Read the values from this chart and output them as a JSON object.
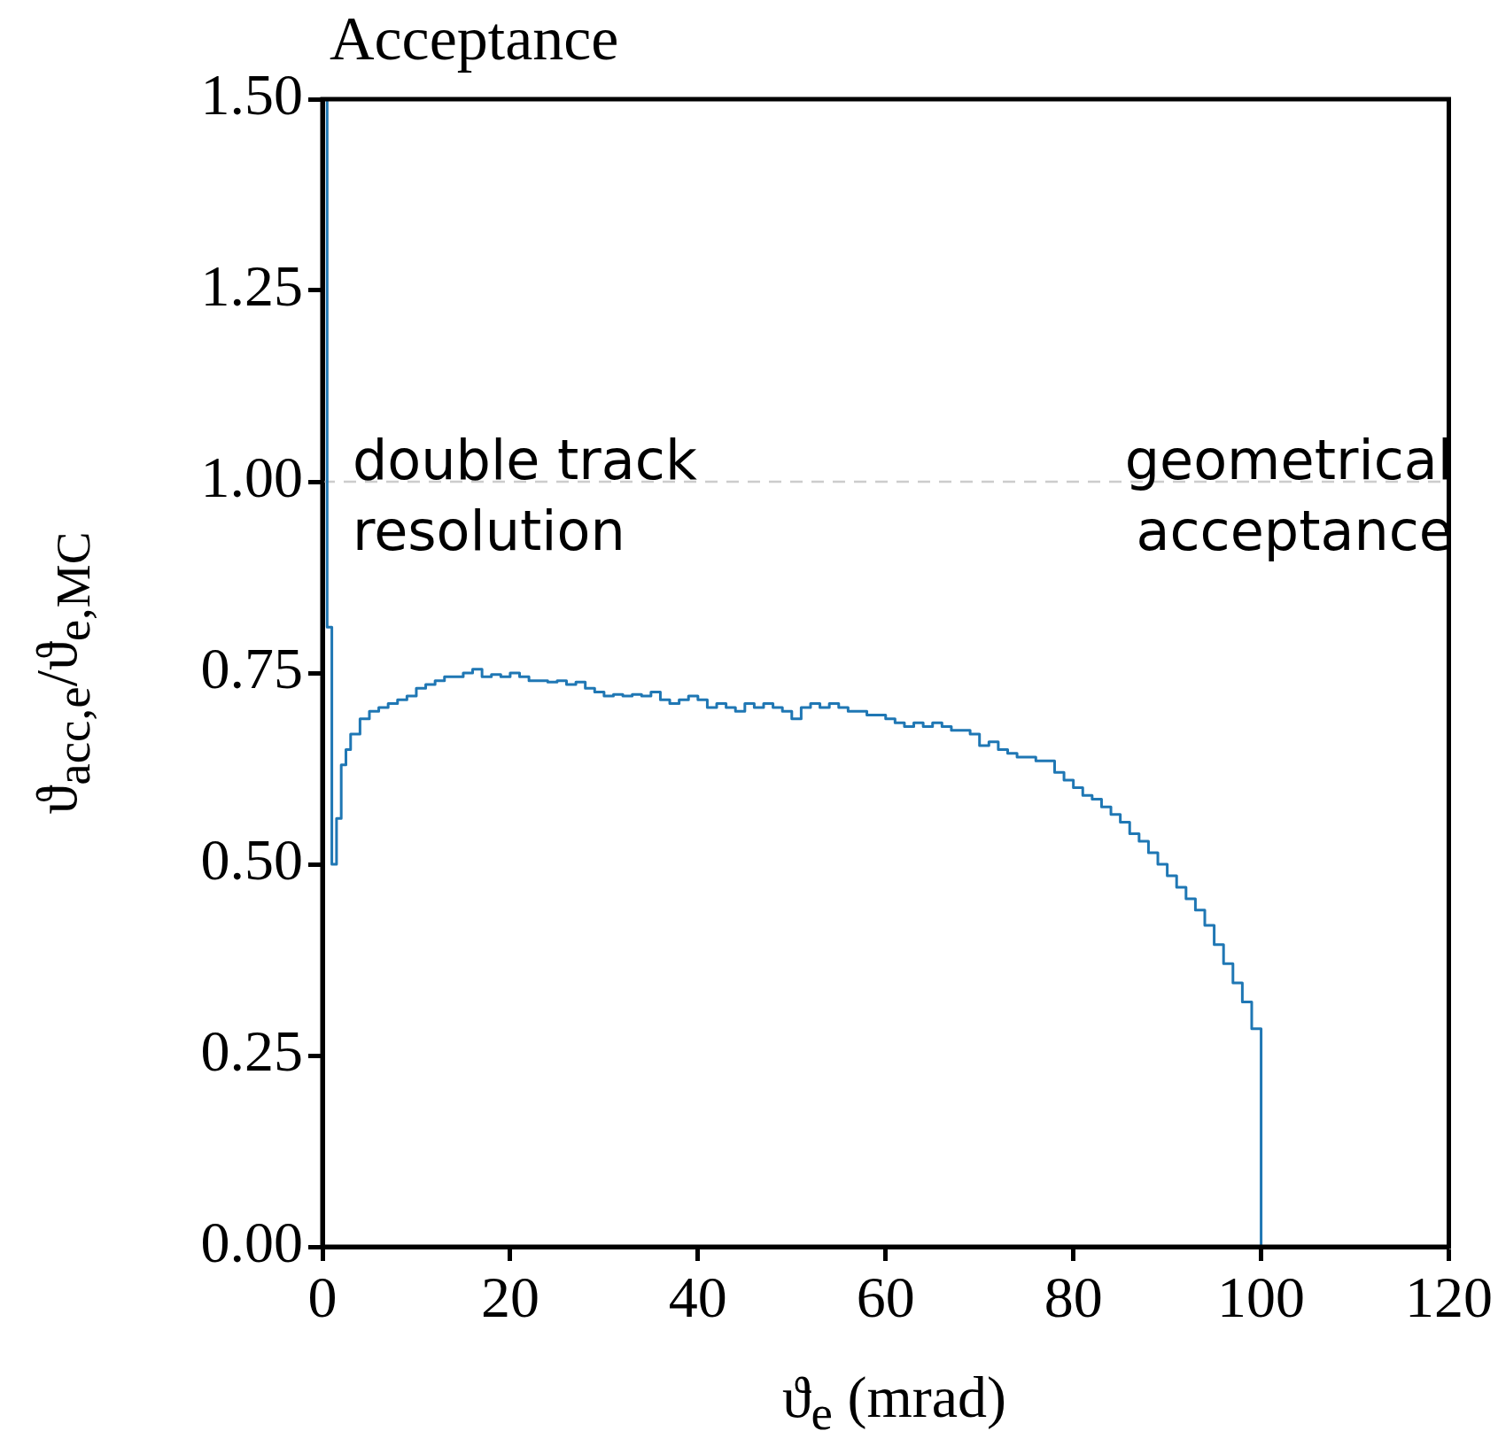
{
  "chart_data": {
    "type": "histogram",
    "title": "Acceptance",
    "xlabel": "ϑ$_{e}$ (mrad)",
    "ylabel": "ϑ$_{acc,e}$/ϑ$_{e,MC}$",
    "bins": [
      0,
      0.5,
      1,
      1.5,
      2,
      2.5,
      3,
      4,
      5,
      6,
      7,
      8,
      9,
      10,
      11,
      12,
      13,
      14,
      15,
      16,
      17,
      18,
      19,
      20,
      21,
      22,
      23,
      24,
      25,
      26,
      27,
      28,
      29,
      30,
      31,
      32,
      33,
      34,
      35,
      36,
      37,
      38,
      39,
      40,
      41,
      42,
      43,
      44,
      45,
      46,
      47,
      48,
      49,
      50,
      51,
      52,
      53,
      54,
      55,
      56,
      57,
      58,
      59,
      60,
      61,
      62,
      63,
      64,
      65,
      66,
      67,
      68,
      69,
      70,
      71,
      72,
      73,
      74,
      75,
      76,
      77,
      78,
      79,
      80,
      81,
      82,
      83,
      84,
      85,
      86,
      87,
      88,
      89,
      90,
      91,
      92,
      93,
      94,
      95,
      96,
      97,
      98,
      99,
      100
    ],
    "values": [
      1.5,
      0.81,
      0.5,
      0.56,
      0.63,
      0.65,
      0.67,
      0.69,
      0.7,
      0.705,
      0.71,
      0.715,
      0.72,
      0.73,
      0.735,
      0.74,
      0.745,
      0.745,
      0.75,
      0.755,
      0.745,
      0.748,
      0.745,
      0.75,
      0.745,
      0.74,
      0.74,
      0.738,
      0.74,
      0.735,
      0.738,
      0.73,
      0.725,
      0.72,
      0.722,
      0.72,
      0.722,
      0.72,
      0.725,
      0.715,
      0.71,
      0.715,
      0.72,
      0.715,
      0.705,
      0.71,
      0.705,
      0.7,
      0.71,
      0.705,
      0.71,
      0.705,
      0.7,
      0.69,
      0.705,
      0.71,
      0.705,
      0.71,
      0.705,
      0.7,
      0.7,
      0.695,
      0.695,
      0.69,
      0.685,
      0.68,
      0.685,
      0.68,
      0.685,
      0.68,
      0.675,
      0.675,
      0.67,
      0.655,
      0.66,
      0.65,
      0.645,
      0.64,
      0.64,
      0.635,
      0.635,
      0.62,
      0.61,
      0.6,
      0.59,
      0.585,
      0.575,
      0.565,
      0.555,
      0.54,
      0.53,
      0.515,
      0.5,
      0.485,
      0.47,
      0.455,
      0.44,
      0.42,
      0.395,
      0.37,
      0.345,
      0.32,
      0.285
    ],
    "color": "#1f77b4",
    "xlim": [
      0,
      120
    ],
    "xticks": [
      0,
      20,
      40,
      60,
      80,
      100,
      120
    ],
    "ylim": [
      0,
      1.5
    ],
    "yticks": [
      {
        "value": 0,
        "label": "0.00"
      },
      {
        "value": 0.25,
        "label": "0.25"
      },
      {
        "value": 0.5,
        "label": "0.50"
      },
      {
        "value": 0.75,
        "label": "0.75"
      },
      {
        "value": 1,
        "label": "1.00"
      },
      {
        "value": 1.25,
        "label": "1.25"
      },
      {
        "value": 1.5,
        "label": "1.50"
      }
    ],
    "ref_lines": [
      {
        "axis": "y",
        "value": 1,
        "label": null,
        "color": "#cccccc",
        "line_style": "dashed"
      }
    ],
    "annotations": [
      "double track\nresolution",
      "geometrical\nacceptance"
    ],
    "grid": false,
    "legend": false
  }
}
